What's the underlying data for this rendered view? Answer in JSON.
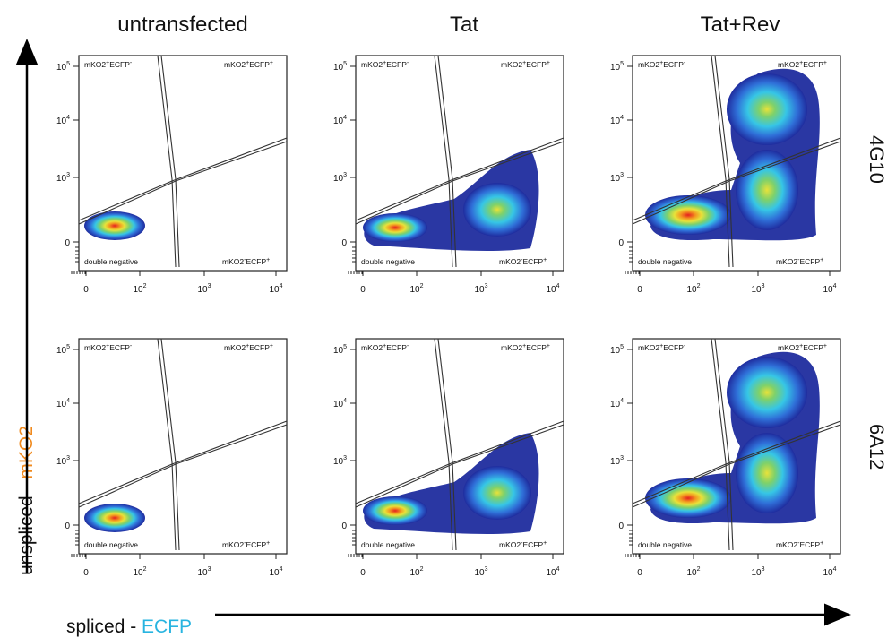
{
  "chart_data": {
    "type": "scatter",
    "subtype": "flow-cytometry density plots (3x2 grid)",
    "columns": [
      "untransfected",
      "Tat",
      "Tat+Rev"
    ],
    "rows": [
      "4G10",
      "6A12"
    ],
    "xlabel_parts": [
      "spliced - ",
      "ECFP"
    ],
    "ylabel_parts": [
      "unspliced - ",
      "mKO2"
    ],
    "xlabel_colors": [
      "#111111",
      "#28b4e0"
    ],
    "ylabel_colors": [
      "#111111",
      "#f08a1e"
    ],
    "x_ticks": [
      "0",
      "10",
      "10",
      "10"
    ],
    "x_tick_exponents": [
      "",
      "2",
      "3",
      "4"
    ],
    "y_ticks": [
      "0",
      "10",
      "10",
      "10"
    ],
    "y_tick_exponents": [
      "",
      "3",
      "4",
      "5"
    ],
    "gates": {
      "top_left": [
        "mKO2",
        "+",
        "ECFP",
        "-"
      ],
      "top_right": [
        "mKO2",
        "+",
        "ECFP",
        "+"
      ],
      "bottom_left": "double negative",
      "bottom_right": [
        "mKO2",
        "-",
        "ECFP",
        "+"
      ]
    },
    "populations": [
      {
        "row": "4G10",
        "col": "untransfected",
        "clusters": [
          "double negative"
        ]
      },
      {
        "row": "4G10",
        "col": "Tat",
        "clusters": [
          "double negative",
          "mKO2-ECFP+"
        ]
      },
      {
        "row": "4G10",
        "col": "Tat+Rev",
        "clusters": [
          "double negative",
          "mKO2-ECFP+",
          "mKO2+ECFP+"
        ]
      },
      {
        "row": "6A12",
        "col": "untransfected",
        "clusters": [
          "double negative"
        ]
      },
      {
        "row": "6A12",
        "col": "Tat",
        "clusters": [
          "double negative",
          "mKO2-ECFP+"
        ]
      },
      {
        "row": "6A12",
        "col": "Tat+Rev",
        "clusters": [
          "double negative",
          "mKO2-ECFP+",
          "mKO2+ECFP+"
        ]
      }
    ],
    "density_colors": [
      "#1f2c9e",
      "#2f6fd8",
      "#36c6e6",
      "#7fd16a",
      "#e8e23a",
      "#f39a20",
      "#e51f1f"
    ]
  }
}
